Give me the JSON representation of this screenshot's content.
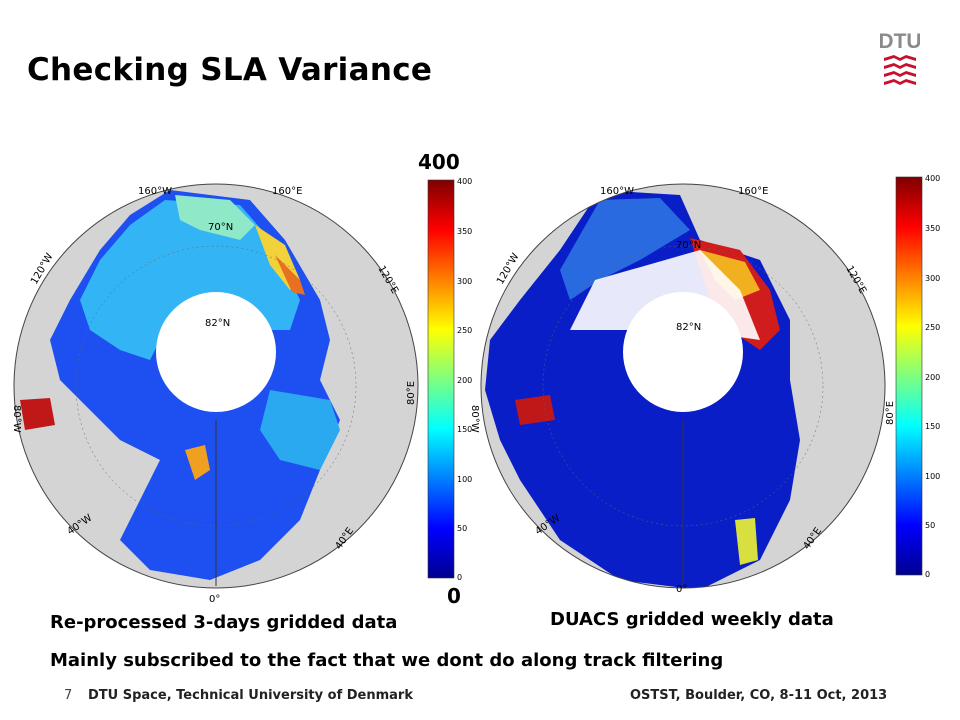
{
  "slide": {
    "title": "Checking SLA Variance",
    "logo_text": "DTU",
    "colorbar_top_label": "400",
    "colorbar_bottom_label": "0",
    "caption_left": "Re-processed 3-days gridded data",
    "caption_right": "DUACS gridded weekly data",
    "note": "Mainly subscribed to the fact that we dont do along track filtering",
    "page_number": "7",
    "footer_left": "DTU Space, Technical University of Denmark",
    "footer_right": "OSTST, Boulder, CO, 8-11 Oct, 2013"
  },
  "maps": {
    "graticule": {
      "lon_160w": "160°W",
      "lon_160e": "160°E",
      "lon_120w": "120°W",
      "lon_120e": "120°E",
      "lon_80w": "80°W",
      "lon_80e": "80°E",
      "lon_40w": "40°W",
      "lon_40e": "40°E",
      "lon_0": "0°",
      "lat_70n": "70°N",
      "lat_82n": "82°N"
    },
    "colorbar_ticks": [
      "400",
      "350",
      "300",
      "250",
      "200",
      "150",
      "100",
      "50",
      "0"
    ],
    "colors": {
      "land": "#d4d4d4",
      "ocean_low": "#0a1ec8",
      "ocean_mid": "#2aa8f0",
      "high": "#b40a0a"
    }
  }
}
